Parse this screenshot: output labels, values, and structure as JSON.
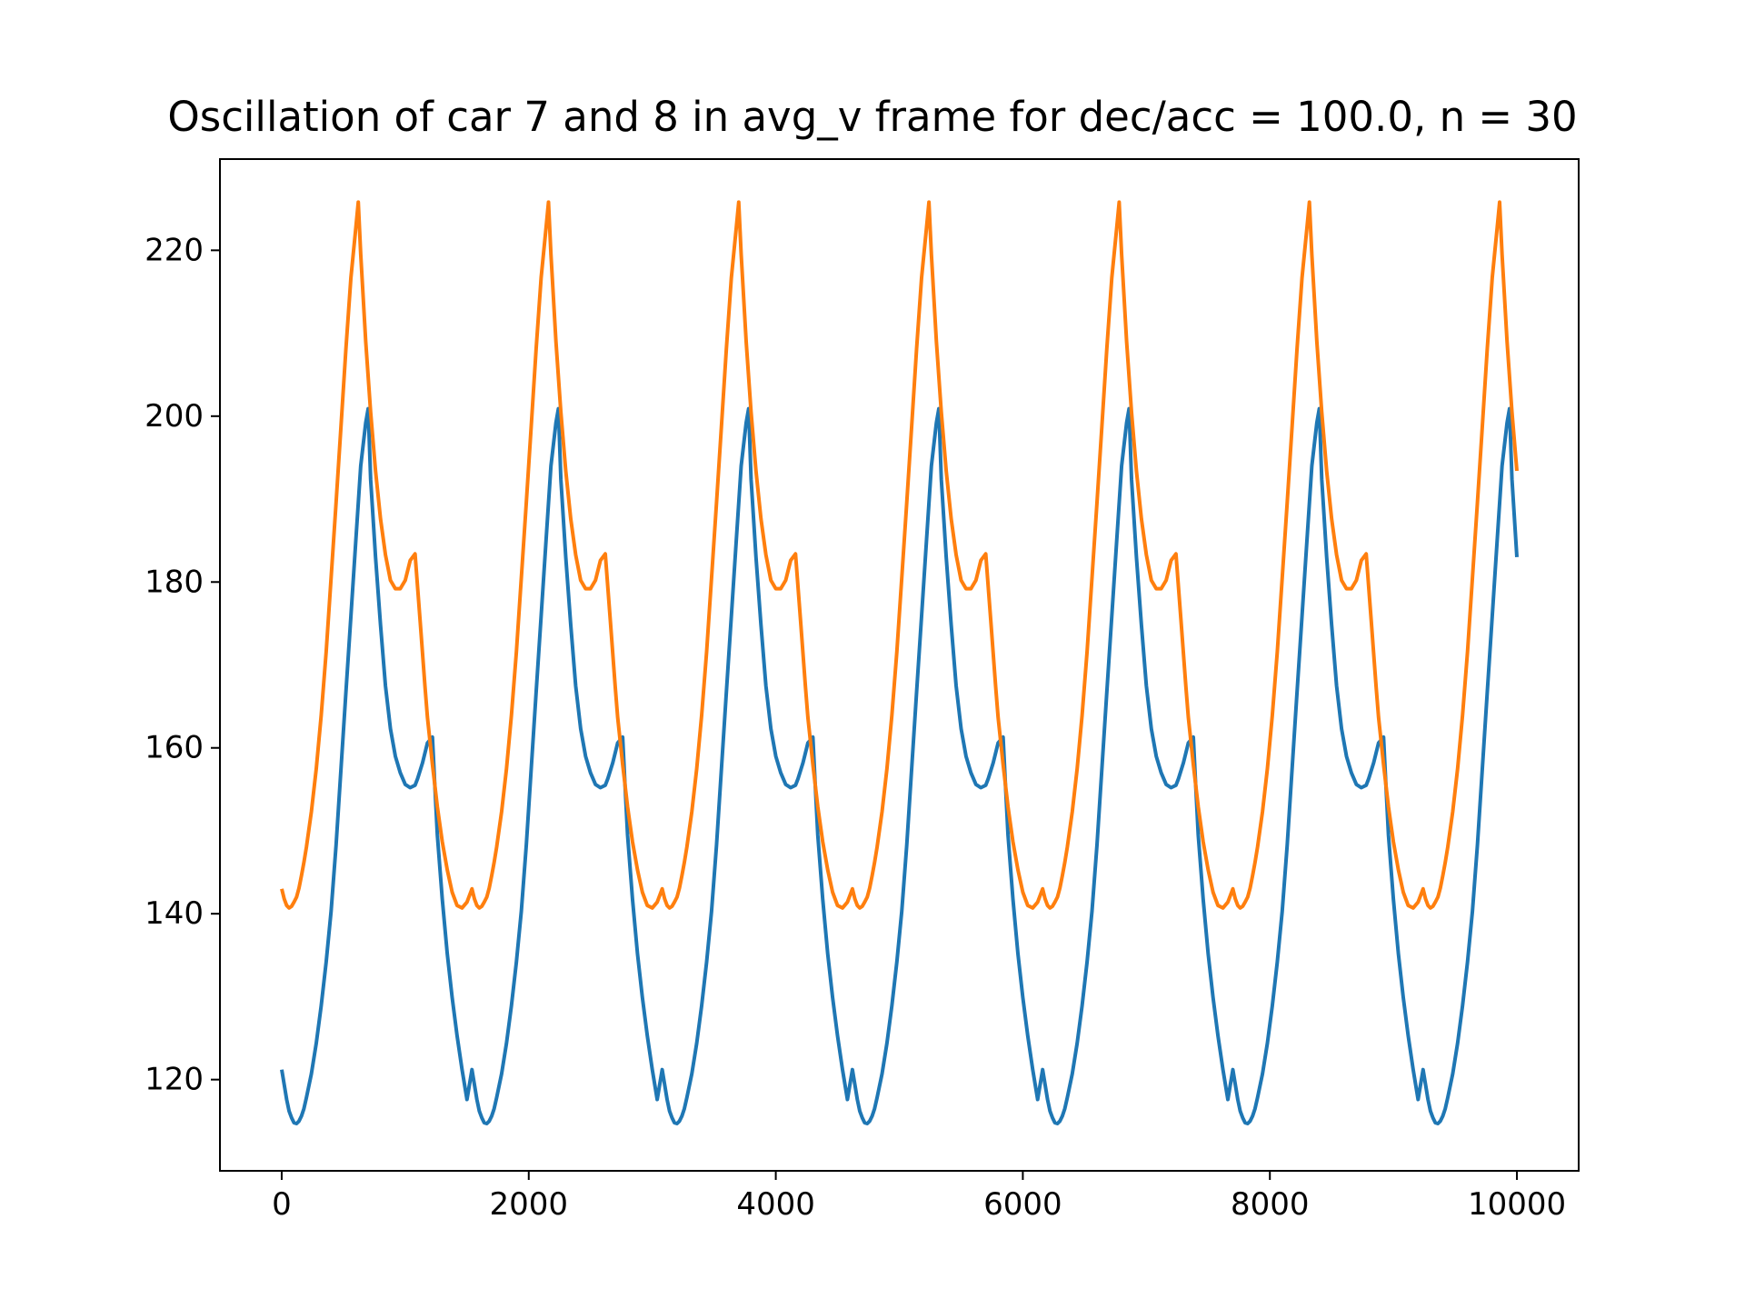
{
  "chart_data": {
    "type": "line",
    "title": "Oscillation of car 7 and 8 in avg_v frame for dec/acc = 100.0, n = 30",
    "xlabel": "",
    "ylabel": "",
    "xlim": [
      -500,
      10500
    ],
    "ylim": [
      109,
      231
    ],
    "xticks": [
      0,
      2000,
      4000,
      6000,
      8000,
      10000
    ],
    "xtick_labels": [
      "0",
      "2000",
      "4000",
      "6000",
      "8000",
      "10000"
    ],
    "yticks": [
      120,
      140,
      160,
      180,
      200,
      220
    ],
    "ytick_labels": [
      "120",
      "140",
      "160",
      "180",
      "200",
      "220"
    ],
    "grid": false,
    "period": 1540,
    "series": [
      {
        "color": "#1f77b4",
        "x_end": 10000,
        "y_end": 192,
        "x": [
          0,
          20,
          40,
          60,
          80,
          100,
          120,
          140,
          160,
          180,
          200,
          240,
          280,
          320,
          360,
          400,
          440,
          480,
          520,
          560,
          600,
          640,
          680,
          700,
          720,
          760,
          800,
          840,
          880,
          920,
          960,
          1000,
          1040,
          1080,
          1100,
          1140,
          1180,
          1220,
          1240,
          1260,
          1300,
          1340,
          1380,
          1420,
          1460,
          1500,
          1540,
          1560
        ],
        "y": [
          121.2,
          119.4,
          117.6,
          116.2,
          115.4,
          114.8,
          114.7,
          115.0,
          115.6,
          116.5,
          117.8,
          120.7,
          124.4,
          128.9,
          134.2,
          140.3,
          148.3,
          157.5,
          166.7,
          175.9,
          185.0,
          194.0,
          199.2,
          200.9,
          192.4,
          183.0,
          174.8,
          167.5,
          162.3,
          159.0,
          157.0,
          155.6,
          155.2,
          155.5,
          156.3,
          158.2,
          160.6,
          161.3,
          155.3,
          149.5,
          141.8,
          135.2,
          129.9,
          125.3,
          121.2,
          117.6,
          121.2,
          119.4
        ]
      },
      {
        "color": "#ff7f0e",
        "x_end": 10000,
        "y_end": 203.5,
        "x": [
          0,
          20,
          40,
          60,
          80,
          100,
          120,
          140,
          160,
          180,
          200,
          240,
          280,
          320,
          360,
          400,
          440,
          480,
          520,
          560,
          600,
          620,
          640,
          680,
          720,
          760,
          800,
          840,
          880,
          920,
          960,
          1000,
          1040,
          1080,
          1120,
          1160,
          1180,
          1220,
          1260,
          1300,
          1340,
          1380,
          1420,
          1460,
          1500,
          1540,
          1560
        ],
        "y": [
          143.0,
          141.8,
          141.0,
          140.7,
          140.9,
          141.4,
          142.0,
          143.1,
          144.6,
          146.2,
          148.0,
          152.3,
          157.5,
          163.9,
          171.6,
          180.5,
          189.6,
          198.8,
          208.1,
          216.7,
          222.7,
          225.8,
          219.5,
          209.0,
          200.5,
          193.4,
          187.6,
          183.3,
          180.2,
          179.2,
          179.2,
          180.2,
          182.6,
          183.4,
          175.4,
          167.4,
          163.7,
          158.0,
          152.9,
          148.7,
          145.3,
          142.6,
          141.0,
          140.7,
          141.4,
          143.0,
          141.8
        ]
      }
    ]
  }
}
